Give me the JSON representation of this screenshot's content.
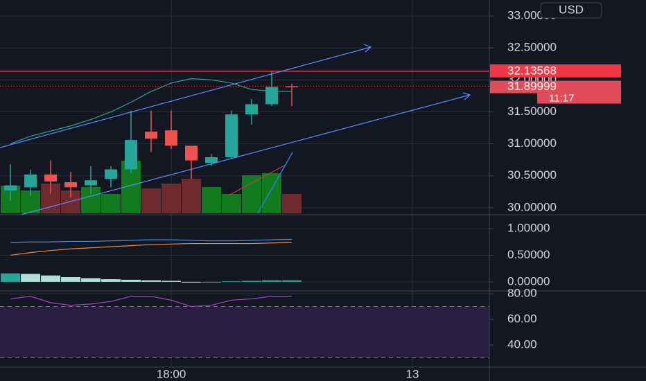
{
  "chart_data": [
    {
      "type": "candlestick",
      "currency": "USD",
      "alert_level": 32.13568,
      "last_price": 31.89999,
      "countdown": "11:17",
      "open": [
        30.27,
        30.32,
        30.52,
        30.4,
        30.35,
        30.45,
        30.6,
        31.19,
        31.21,
        30.97,
        30.7,
        30.79,
        31.46,
        31.62,
        31.9
      ],
      "high": [
        30.68,
        30.6,
        30.74,
        30.56,
        30.65,
        30.65,
        31.52,
        31.52,
        31.52,
        30.97,
        30.84,
        31.52,
        31.7,
        32.14,
        31.94
      ],
      "low": [
        30.11,
        30.19,
        30.22,
        30.16,
        30.22,
        30.32,
        30.54,
        30.87,
        30.92,
        30.45,
        30.65,
        30.76,
        31.3,
        31.59,
        31.59
      ],
      "close": [
        30.35,
        30.52,
        30.41,
        30.32,
        30.43,
        30.6,
        31.06,
        31.08,
        30.97,
        30.74,
        30.79,
        31.46,
        31.62,
        31.89,
        31.89999
      ],
      "volume": [
        40,
        33,
        43,
        33,
        38,
        28,
        76,
        36,
        43,
        50,
        38,
        28,
        55,
        58,
        28
      ],
      "ma": {
        "color": "#26a69a",
        "values": [
          31.0,
          31.12,
          31.2,
          31.28,
          31.38,
          31.5,
          31.65,
          31.82,
          31.95,
          32.02,
          32.0,
          31.95,
          31.85,
          31.82,
          31.82
        ]
      },
      "up_color": "#26a69a",
      "down_color": "#ef5350",
      "volume_up_color": "#127a1f",
      "volume_down_color": "#6e2a2c",
      "xlim": [
        -0.52,
        23.83
      ],
      "ylim": [
        29.89,
        33.25
      ],
      "yticks": [
        {
          "value": 33.0,
          "label": "33.00000"
        },
        {
          "value": 32.5,
          "label": "32.50000"
        },
        {
          "value": 32.0,
          "label": "32.00000"
        },
        {
          "value": 31.5,
          "label": "31.50000"
        },
        {
          "value": 31.0,
          "label": "31.00000"
        },
        {
          "value": 30.5,
          "label": "30.50000"
        },
        {
          "value": 30.0,
          "label": "30.00000"
        }
      ],
      "xticks": [
        {
          "value": 8,
          "label": "18:00"
        },
        {
          "value": 20,
          "label": "13"
        }
      ]
    },
    {
      "type": "line",
      "series": [
        {
          "color": "#4f8fe6",
          "values": [
            0.74,
            0.75,
            0.75,
            0.76,
            0.76,
            0.77,
            0.78,
            0.79,
            0.79,
            0.78,
            0.77,
            0.77,
            0.78,
            0.79,
            0.8
          ]
        },
        {
          "color": "#f0883e",
          "values": [
            0.5,
            0.55,
            0.59,
            0.62,
            0.64,
            0.66,
            0.68,
            0.7,
            0.71,
            0.72,
            0.72,
            0.72,
            0.72,
            0.73,
            0.74
          ]
        }
      ],
      "histogram": [
        0.16,
        0.15,
        0.12,
        0.09,
        0.07,
        0.05,
        0.04,
        0.03,
        0.02,
        0.0,
        -0.005,
        0.01,
        0.02,
        0.03,
        0.03
      ],
      "ylim": [
        -0.17,
        1.26
      ],
      "yticks": [
        {
          "value": 1.0,
          "label": "1.00000"
        },
        {
          "value": 0.5,
          "label": "0.50000"
        },
        {
          "value": 0.0,
          "label": "0.00000"
        }
      ]
    },
    {
      "type": "rsi",
      "color": "#b040c8",
      "values": [
        76,
        78,
        73,
        71,
        72,
        74,
        78,
        78,
        75,
        70,
        71,
        75,
        76,
        78,
        78
      ],
      "bands": [
        70,
        30
      ],
      "band_color": "#2a1f45",
      "ylim": [
        22.7,
        82.2
      ],
      "yticks": [
        {
          "value": 80,
          "label": "80.00"
        },
        {
          "value": 60,
          "label": "60.00"
        },
        {
          "value": 40,
          "label": "40.00"
        }
      ]
    }
  ]
}
